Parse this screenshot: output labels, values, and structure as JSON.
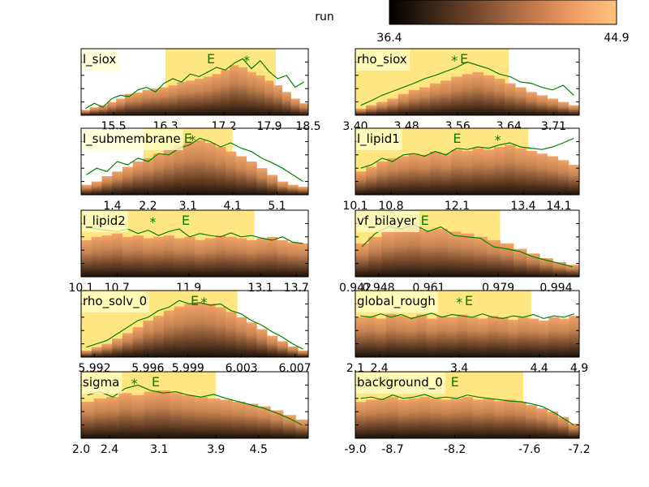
{
  "colorbar": {
    "label": "run",
    "min_label": "36.4",
    "max_label": "44.9",
    "colors": [
      "#000000",
      "#3d2716",
      "#7a4d30",
      "#b87348",
      "#f09a62",
      "#ffc47e"
    ]
  },
  "colors": {
    "line": "#008000",
    "band": "#ffe680",
    "frame": "#000000",
    "label_bg": "#ffffcc"
  },
  "chart_data": [
    {
      "type": "bar",
      "title": "l_siox",
      "xlim": [
        15.0,
        18.5
      ],
      "xticks": [
        "15.5",
        "16.3",
        "17.2",
        "17.9",
        "18.5"
      ],
      "xtick_values": [
        15.5,
        16.3,
        17.2,
        17.9,
        18.5
      ],
      "band": [
        16.3,
        18.0
      ],
      "e_marker": 17.0,
      "star_marker": 17.55,
      "bars": [
        0.08,
        0.12,
        0.15,
        0.2,
        0.25,
        0.32,
        0.34,
        0.38,
        0.4,
        0.42,
        0.45,
        0.5,
        0.52,
        0.55,
        0.58,
        0.62,
        0.68,
        0.75,
        0.72,
        0.65,
        0.6,
        0.52,
        0.45,
        0.35,
        0.25,
        0.18
      ],
      "line": [
        0.1,
        0.18,
        0.12,
        0.25,
        0.3,
        0.28,
        0.38,
        0.42,
        0.35,
        0.48,
        0.55,
        0.5,
        0.62,
        0.58,
        0.65,
        0.72,
        0.68,
        0.78,
        0.85,
        0.7,
        0.82,
        0.66,
        0.55,
        0.6,
        0.42,
        0.5
      ]
    },
    {
      "type": "bar",
      "title": "rho_siox",
      "xlim": [
        3.4,
        3.75
      ],
      "xticks": [
        "3.40",
        "3.48",
        "3.56",
        "3.64",
        "3.71"
      ],
      "xtick_values": [
        3.4,
        3.48,
        3.56,
        3.64,
        3.71
      ],
      "band": [
        3.4,
        3.64
      ],
      "e_marker": 3.57,
      "star_marker": 3.555,
      "bars": [
        0.1,
        0.15,
        0.2,
        0.25,
        0.32,
        0.38,
        0.42,
        0.48,
        0.52,
        0.58,
        0.62,
        0.65,
        0.6,
        0.55,
        0.48,
        0.42,
        0.35,
        0.3,
        0.25,
        0.2,
        0.15
      ],
      "line": [
        0.15,
        0.22,
        0.3,
        0.36,
        0.42,
        0.48,
        0.55,
        0.6,
        0.66,
        0.72,
        0.8,
        0.75,
        0.7,
        0.62,
        0.58,
        0.5,
        0.48,
        0.42,
        0.38,
        0.45,
        0.3
      ]
    },
    {
      "type": "bar",
      "title": "l_submembrane",
      "xlim": [
        0.7,
        5.8
      ],
      "xticks": [
        "1.4",
        "2.2",
        "3.1",
        "4.1",
        "5.1"
      ],
      "xtick_values": [
        1.4,
        2.2,
        3.1,
        4.1,
        5.1
      ],
      "band": [
        2.1,
        4.1
      ],
      "e_marker": 3.1,
      "star_marker": 3.2,
      "bars": [
        0.15,
        0.2,
        0.28,
        0.35,
        0.42,
        0.5,
        0.55,
        0.62,
        0.68,
        0.75,
        0.8,
        0.82,
        0.78,
        0.72,
        0.65,
        0.58,
        0.5,
        0.4,
        0.3,
        0.2,
        0.15,
        0.12
      ],
      "line": [
        0.3,
        0.4,
        0.35,
        0.5,
        0.45,
        0.55,
        0.5,
        0.62,
        0.6,
        0.7,
        0.75,
        0.85,
        0.8,
        0.72,
        0.78,
        0.7,
        0.65,
        0.55,
        0.48,
        0.4,
        0.3,
        0.2
      ]
    },
    {
      "type": "bar",
      "title": "l_lipid1",
      "xlim": [
        10.1,
        14.5
      ],
      "xticks": [
        "10.1",
        "10.8",
        "12.1",
        "13.4",
        "14.1"
      ],
      "xtick_values": [
        10.1,
        10.8,
        12.1,
        13.4,
        14.1
      ],
      "band": [
        10.1,
        13.5
      ],
      "e_marker": 12.1,
      "star_marker": 12.9,
      "bars": [
        0.35,
        0.42,
        0.5,
        0.55,
        0.58,
        0.62,
        0.6,
        0.65,
        0.62,
        0.68,
        0.66,
        0.7,
        0.68,
        0.72,
        0.75,
        0.7,
        0.66,
        0.62,
        0.58,
        0.52,
        0.45
      ],
      "line": [
        0.4,
        0.45,
        0.55,
        0.5,
        0.6,
        0.62,
        0.58,
        0.65,
        0.6,
        0.7,
        0.68,
        0.72,
        0.7,
        0.75,
        0.78,
        0.72,
        0.7,
        0.68,
        0.72,
        0.78,
        0.85
      ]
    },
    {
      "type": "bar",
      "title": "l_lipid2",
      "xlim": [
        10.1,
        13.9
      ],
      "xticks": [
        "10.1",
        "10.7",
        "11.9",
        "13.1",
        "13.7"
      ],
      "xtick_values": [
        10.1,
        10.7,
        11.9,
        13.1,
        13.7
      ],
      "band": [
        10.1,
        13.0
      ],
      "e_marker": 11.85,
      "star_marker": 11.3,
      "bars": [
        0.55,
        0.6,
        0.62,
        0.65,
        0.6,
        0.62,
        0.58,
        0.6,
        0.62,
        0.58,
        0.6,
        0.55,
        0.58,
        0.62,
        0.6,
        0.58,
        0.55,
        0.58,
        0.6,
        0.55,
        0.52,
        0.5
      ],
      "line": [
        0.75,
        0.72,
        0.7,
        0.68,
        0.72,
        0.65,
        0.7,
        0.62,
        0.68,
        0.72,
        0.6,
        0.65,
        0.62,
        0.6,
        0.66,
        0.6,
        0.62,
        0.58,
        0.55,
        0.6,
        0.52,
        0.5
      ]
    },
    {
      "type": "bar",
      "title": "vf_bilayer",
      "xlim": [
        0.942,
        1.0
      ],
      "xticks": [
        "0.942",
        "0.948",
        "0.961",
        "0.979",
        "0.994"
      ],
      "xtick_values": [
        0.942,
        0.948,
        0.961,
        0.979,
        0.994
      ],
      "band": [
        0.942,
        0.9795
      ],
      "e_marker": 0.96,
      "star_marker": null,
      "bars": [
        0.5,
        0.6,
        0.68,
        0.72,
        0.75,
        0.7,
        0.72,
        0.68,
        0.65,
        0.6,
        0.55,
        0.5,
        0.42,
        0.35,
        0.28,
        0.22,
        0.18
      ],
      "line": [
        0.45,
        0.65,
        0.75,
        0.72,
        0.78,
        0.68,
        0.75,
        0.62,
        0.6,
        0.58,
        0.45,
        0.42,
        0.38,
        0.3,
        0.25,
        0.2,
        0.15
      ]
    },
    {
      "type": "bar",
      "title": "rho_solv_0",
      "xlim": [
        5.991,
        6.008
      ],
      "xticks": [
        "5.992",
        "5.996",
        "5.999",
        "6.003",
        "6.007"
      ],
      "xtick_values": [
        5.992,
        5.996,
        5.999,
        6.003,
        6.007
      ],
      "band": [
        5.991,
        6.0027
      ],
      "e_marker": 5.9995,
      "star_marker": 6.0002,
      "bars": [
        0.1,
        0.15,
        0.2,
        0.28,
        0.36,
        0.45,
        0.55,
        0.62,
        0.7,
        0.76,
        0.8,
        0.82,
        0.8,
        0.75,
        0.68,
        0.6,
        0.52,
        0.42,
        0.32,
        0.24,
        0.16,
        0.1
      ],
      "line": [
        0.15,
        0.2,
        0.25,
        0.35,
        0.45,
        0.55,
        0.6,
        0.7,
        0.75,
        0.85,
        0.8,
        0.82,
        0.78,
        0.8,
        0.7,
        0.65,
        0.55,
        0.48,
        0.38,
        0.3,
        0.2,
        0.12
      ]
    },
    {
      "type": "bar",
      "title": "global_rough",
      "xlim": [
        2.1,
        4.9
      ],
      "xticks": [
        "2.1",
        "2.4",
        "3.4",
        "4.4",
        "4.9"
      ],
      "xtick_values": [
        2.1,
        2.4,
        3.4,
        4.4,
        4.9
      ],
      "band": [
        2.1,
        4.3
      ],
      "e_marker": 3.52,
      "star_marker": 3.4,
      "bars": [
        0.6,
        0.62,
        0.58,
        0.65,
        0.62,
        0.6,
        0.64,
        0.58,
        0.62,
        0.6,
        0.64,
        0.6,
        0.58,
        0.62,
        0.6,
        0.56,
        0.6,
        0.58,
        0.55,
        0.6,
        0.58,
        0.62
      ],
      "line": [
        0.62,
        0.6,
        0.65,
        0.6,
        0.64,
        0.58,
        0.62,
        0.66,
        0.6,
        0.64,
        0.62,
        0.6,
        0.65,
        0.6,
        0.58,
        0.62,
        0.6,
        0.64,
        0.58,
        0.62,
        0.6,
        0.65
      ]
    },
    {
      "type": "bar",
      "title": "sigma",
      "xlim": [
        2.0,
        5.2
      ],
      "xticks": [
        "2.0",
        "2.4",
        "3.1",
        "3.9",
        "4.5"
      ],
      "xtick_values": [
        2.0,
        2.4,
        3.1,
        3.9,
        4.5
      ],
      "band": [
        2.0,
        3.9
      ],
      "e_marker": 3.05,
      "star_marker": 2.75,
      "bars": [
        0.55,
        0.6,
        0.62,
        0.68,
        0.65,
        0.7,
        0.72,
        0.68,
        0.65,
        0.62,
        0.6,
        0.58,
        0.55,
        0.52,
        0.48,
        0.42,
        0.35,
        0.28
      ],
      "line": [
        0.65,
        0.7,
        0.62,
        0.75,
        0.8,
        0.72,
        0.68,
        0.7,
        0.65,
        0.62,
        0.66,
        0.6,
        0.55,
        0.5,
        0.45,
        0.38,
        0.3,
        0.2
      ]
    },
    {
      "type": "bar",
      "title": "background_0",
      "xlim": [
        -9.0,
        -7.2
      ],
      "xticks": [
        "-9.0",
        "-8.7",
        "-8.2",
        "-7.6",
        "-7.2"
      ],
      "xtick_values": [
        -9.0,
        -8.7,
        -8.2,
        -7.6,
        -7.2
      ],
      "band": [
        -9.0,
        -7.65
      ],
      "e_marker": -8.2,
      "star_marker": -8.75,
      "bars": [
        0.55,
        0.58,
        0.6,
        0.62,
        0.58,
        0.6,
        0.62,
        0.6,
        0.58,
        0.6,
        0.62,
        0.58,
        0.6,
        0.56,
        0.58,
        0.55,
        0.5,
        0.45,
        0.4,
        0.32,
        0.22
      ],
      "line": [
        0.6,
        0.62,
        0.58,
        0.65,
        0.6,
        0.62,
        0.66,
        0.6,
        0.62,
        0.6,
        0.65,
        0.62,
        0.6,
        0.58,
        0.56,
        0.55,
        0.52,
        0.48,
        0.4,
        0.3,
        0.2
      ]
    }
  ]
}
